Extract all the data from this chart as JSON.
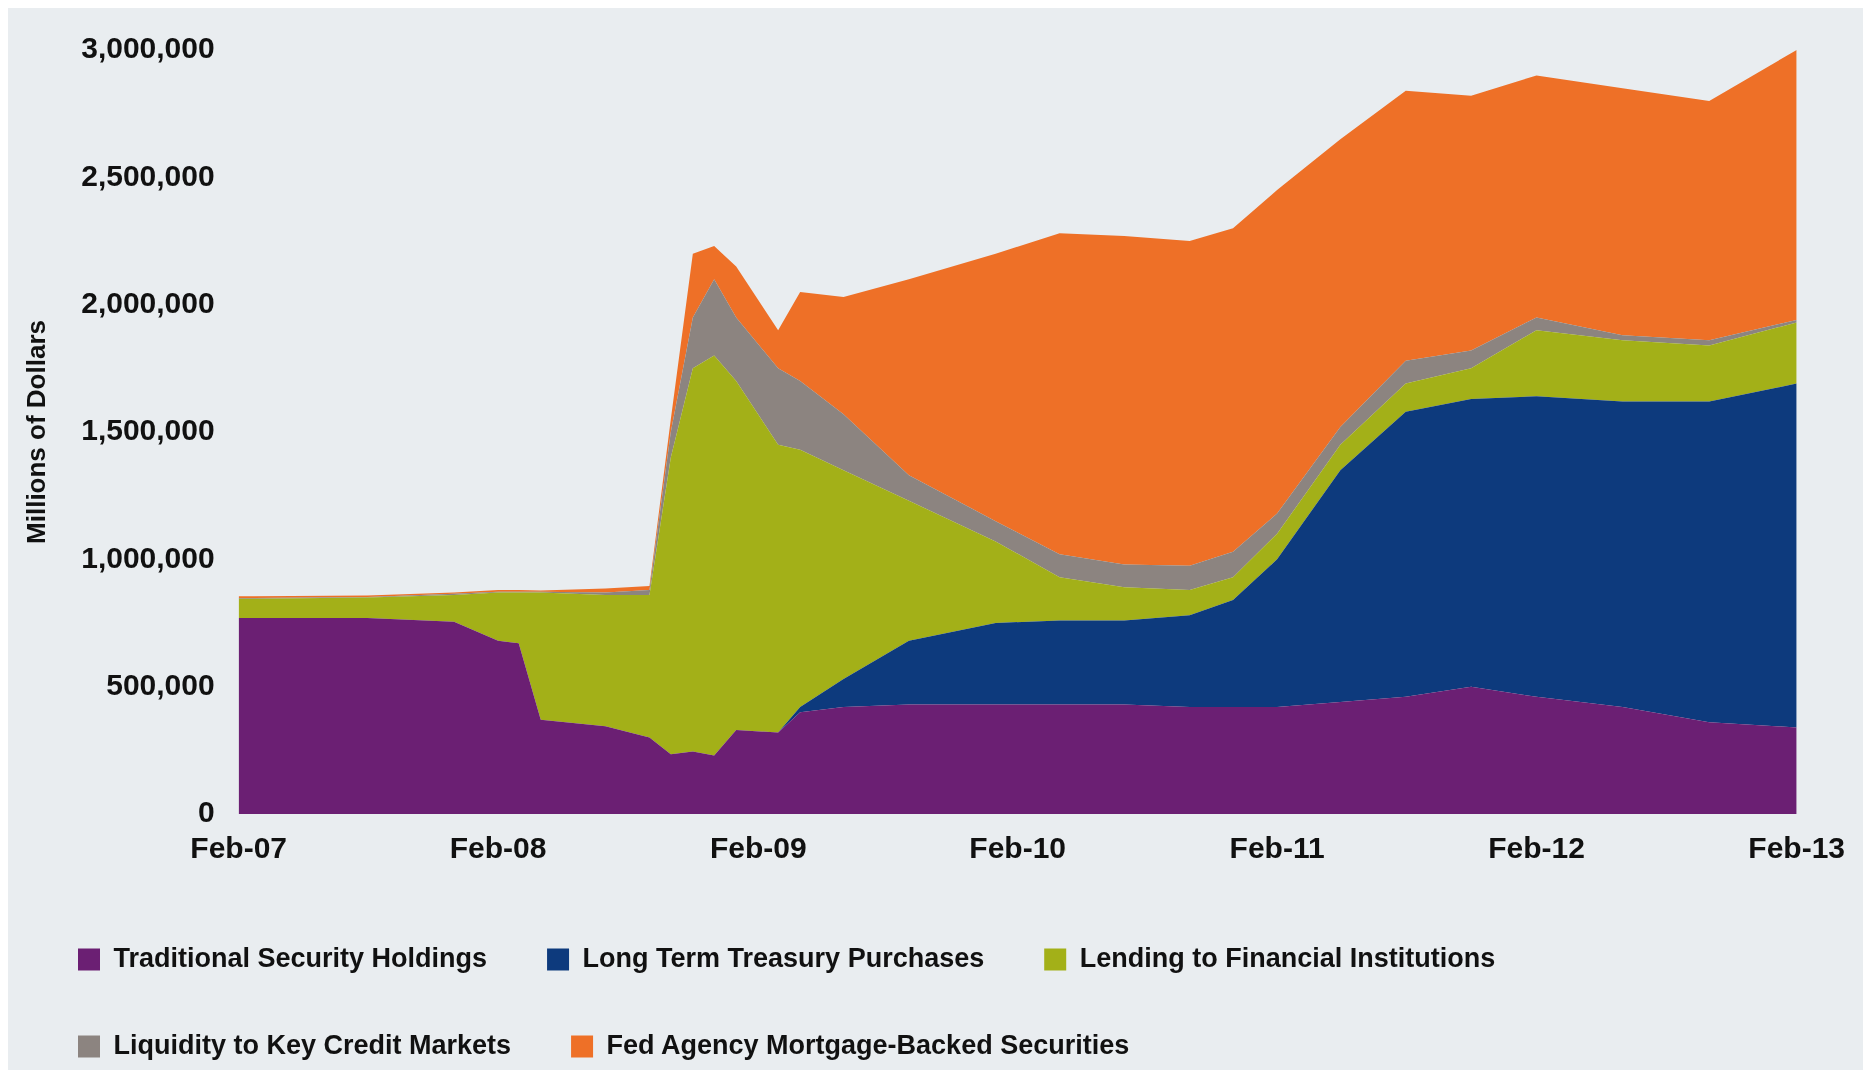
{
  "chart_data": {
    "type": "area",
    "stacked": true,
    "ylabel": "Millions of Dollars",
    "x": [
      "2007-02",
      "2007-08",
      "2007-12",
      "2008-02",
      "2008-03",
      "2008-04",
      "2008-07",
      "2008-09",
      "2008-10",
      "2008-11",
      "2008-12",
      "2009-01",
      "2009-03",
      "2009-04",
      "2009-06",
      "2009-09",
      "2010-01",
      "2010-04",
      "2010-07",
      "2010-10",
      "2010-12",
      "2011-02",
      "2011-05",
      "2011-08",
      "2011-11",
      "2012-02",
      "2012-06",
      "2012-10",
      "2013-02"
    ],
    "series": [
      {
        "name": "Traditional Security Holdings",
        "color": "#6b1f73",
        "values": [
          770000,
          770000,
          755000,
          680000,
          670000,
          370000,
          345000,
          300000,
          235000,
          245000,
          230000,
          330000,
          320000,
          400000,
          420000,
          430000,
          430000,
          430000,
          430000,
          420000,
          420000,
          420000,
          440000,
          460000,
          500000,
          460000,
          420000,
          360000,
          340000
        ]
      },
      {
        "name": "Long Term Treasury Purchases",
        "color": "#0d3a7d",
        "values": [
          0,
          0,
          0,
          0,
          0,
          0,
          0,
          0,
          0,
          0,
          0,
          0,
          0,
          20000,
          110000,
          250000,
          320000,
          330000,
          330000,
          360000,
          420000,
          580000,
          910000,
          1120000,
          1130000,
          1180000,
          1200000,
          1260000,
          1350000
        ]
      },
      {
        "name": "Lending to Financial Institutions",
        "color": "#a3b018",
        "values": [
          75000,
          80000,
          105000,
          190000,
          200000,
          500000,
          515000,
          560000,
          1165000,
          1505000,
          1570000,
          1370000,
          1130000,
          1010000,
          820000,
          550000,
          320000,
          170000,
          130000,
          100000,
          90000,
          100000,
          100000,
          110000,
          120000,
          260000,
          240000,
          220000,
          240000
        ]
      },
      {
        "name": "Liquidity to Key Credit Markets",
        "color": "#8c8480",
        "values": [
          3000,
          2000,
          5000,
          3000,
          3000,
          3000,
          10000,
          20000,
          100000,
          200000,
          300000,
          250000,
          300000,
          270000,
          220000,
          100000,
          80000,
          90000,
          90000,
          95000,
          100000,
          80000,
          70000,
          90000,
          70000,
          50000,
          20000,
          20000,
          10000
        ]
      },
      {
        "name": "Fed Agency Mortgage-Backed Securities",
        "color": "#ee7027",
        "values": [
          7000,
          6000,
          5000,
          7000,
          7000,
          5000,
          15000,
          15000,
          50000,
          250000,
          130000,
          200000,
          150000,
          350000,
          460000,
          770000,
          1050000,
          1260000,
          1290000,
          1275000,
          1270000,
          1270000,
          1130000,
          1060000,
          1000000,
          950000,
          970000,
          940000,
          1060000
        ]
      }
    ],
    "xlim": [
      "2007-02",
      "2013-02"
    ],
    "xticks": [
      {
        "value": "2007-02",
        "label": "Feb-07"
      },
      {
        "value": "2008-02",
        "label": "Feb-08"
      },
      {
        "value": "2009-02",
        "label": "Feb-09"
      },
      {
        "value": "2010-02",
        "label": "Feb-10"
      },
      {
        "value": "2011-02",
        "label": "Feb-11"
      },
      {
        "value": "2012-02",
        "label": "Feb-12"
      },
      {
        "value": "2013-02",
        "label": "Feb-13"
      }
    ],
    "ylim": [
      0,
      3000000
    ],
    "yticks": [
      {
        "value": 0,
        "label": "0"
      },
      {
        "value": 500000,
        "label": "500,000"
      },
      {
        "value": 1000000,
        "label": "1,000,000"
      },
      {
        "value": 1500000,
        "label": "1,500,000"
      },
      {
        "value": 2000000,
        "label": "2,000,000"
      },
      {
        "value": 2500000,
        "label": "2,500,000"
      },
      {
        "value": 3000000,
        "label": "3,000,000"
      }
    ],
    "grid": false,
    "legend": "bottom"
  }
}
